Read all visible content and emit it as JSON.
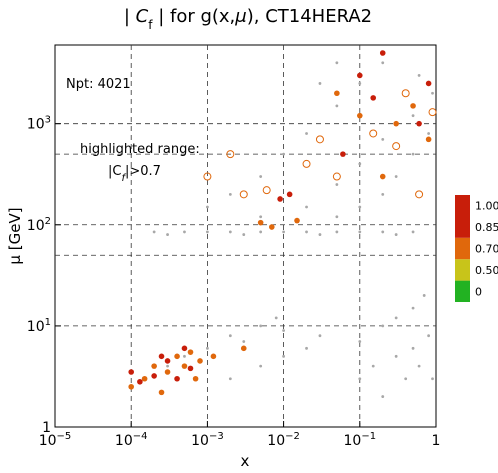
{
  "chart_data": {
    "type": "scatter",
    "title_parts": [
      "| ",
      "C",
      "f",
      " | for g(x,",
      "μ",
      "), CT14HERA2"
    ],
    "xlabel": "x",
    "ylabel": "μ [GeV]",
    "annotations": {
      "npt": "Npt: 4021",
      "range": "highlighted range:",
      "cond": [
        "|C",
        "f",
        "|>0.7"
      ]
    },
    "xscale": "log",
    "yscale": "log",
    "xlim": [
      1e-05,
      1
    ],
    "ylim": [
      1,
      6000
    ],
    "xticks": [
      {
        "value": 1e-05,
        "label": "10",
        "exp": "−5"
      },
      {
        "value": 0.0001,
        "label": "10",
        "exp": "−4"
      },
      {
        "value": 0.001,
        "label": "10",
        "exp": "−3"
      },
      {
        "value": 0.01,
        "label": "10",
        "exp": "−2"
      },
      {
        "value": 0.1,
        "label": "10",
        "exp": "−1"
      },
      1
    ],
    "yticks": [
      1,
      {
        "value": 10,
        "label": "10",
        "exp": "1"
      },
      {
        "value": 100,
        "label": "10",
        "exp": "2"
      },
      {
        "value": 1000,
        "label": "10",
        "exp": "3"
      }
    ],
    "xgrid": [
      0.0001,
      0.001,
      0.01,
      0.1
    ],
    "ygrid": [
      10,
      50,
      100,
      500,
      1000
    ],
    "colorbar": {
      "colors": [
        "#22b222",
        "#c8c41a",
        "#e0680c",
        "#c81e0a"
      ],
      "ticks": [
        0,
        {
          "value": 0.5,
          "label": "0.50"
        },
        {
          "value": 0.7,
          "label": "0.70"
        },
        {
          "value": 0.85,
          "label": "0.85"
        },
        {
          "value": 1,
          "label": "1.00"
        }
      ]
    },
    "series": [
      {
        "color": "#a8a8a8",
        "marker": "dot",
        "x": [
          0.0002,
          0.0005,
          0.001,
          0.002,
          0.005,
          0.01,
          0.02,
          0.05,
          0.1,
          0.2,
          0.5,
          0.0003,
          0.003,
          0.03,
          0.3,
          0.0001,
          0.00015,
          0.0003,
          0.0005,
          0.001,
          0.002,
          0.003,
          0.005,
          0.008,
          0.01,
          0.002,
          0.005,
          0.01,
          0.02,
          0.03,
          0.1,
          0.15,
          0.2,
          0.3,
          0.4,
          0.5,
          0.6,
          0.8,
          0.9,
          0.2,
          0.3,
          0.5,
          0.7,
          0.1,
          0.001,
          0.002,
          0.005,
          0.01,
          0.02,
          0.05,
          0.1,
          0.2,
          0.02,
          0.05,
          0.1,
          0.2,
          0.5,
          0.3,
          0.5,
          0.8,
          0.05,
          0.1,
          0.2,
          0.005,
          0.03,
          0.05,
          0.6,
          0.9
        ],
        "values": [
          85,
          85,
          85,
          85,
          85,
          85,
          85,
          85,
          85,
          85,
          85,
          80,
          80,
          80,
          80,
          2.5,
          3,
          4,
          5,
          6,
          8,
          7,
          10,
          12,
          9,
          3,
          4,
          5,
          6,
          8,
          3,
          4,
          2,
          5,
          3,
          6,
          4,
          8,
          3,
          10,
          12,
          15,
          20,
          7,
          150,
          200,
          300,
          500,
          800,
          1500,
          2500,
          4000,
          150,
          250,
          400,
          700,
          1200,
          300,
          500,
          800,
          120,
          150,
          200,
          120,
          2500,
          4000,
          3000,
          2000
        ]
      },
      {
        "color": "#e0680c",
        "marker": "filled",
        "x": [
          0.00015,
          0.0002,
          0.0003,
          0.0004,
          0.0005,
          0.0007,
          0.0001,
          0.00025,
          0.0006,
          0.0008,
          0.003,
          0.0012,
          0.005,
          0.015,
          0.007,
          0.3,
          0.5,
          0.8,
          0.2,
          0.05,
          0.1
        ],
        "values": [
          3,
          4,
          3.5,
          5,
          4,
          3,
          2.5,
          2.2,
          5.5,
          4.5,
          6,
          5,
          105,
          110,
          95,
          1000,
          1500,
          700,
          300,
          2000,
          1200
        ]
      },
      {
        "color": "#c81e0a",
        "marker": "filled",
        "x": [
          0.00013,
          0.0002,
          0.0003,
          0.0004,
          0.0005,
          0.00025,
          0.0001,
          0.0006,
          0.012,
          0.009,
          0.1,
          0.15,
          0.2,
          0.6,
          0.06,
          0.8
        ],
        "values": [
          2.8,
          3.2,
          4.5,
          3,
          6,
          5,
          3.5,
          3.8,
          200,
          180,
          3000,
          1800,
          5000,
          1000,
          500,
          2500
        ]
      },
      {
        "color": "#e0680c",
        "marker": "open",
        "x": [
          0.001,
          0.002,
          0.003,
          0.006,
          0.02,
          0.03,
          0.05,
          0.15,
          0.3,
          0.6,
          0.9,
          0.4
        ],
        "values": [
          300,
          500,
          200,
          220,
          400,
          700,
          300,
          800,
          600,
          200,
          1300,
          2000
        ]
      }
    ]
  }
}
